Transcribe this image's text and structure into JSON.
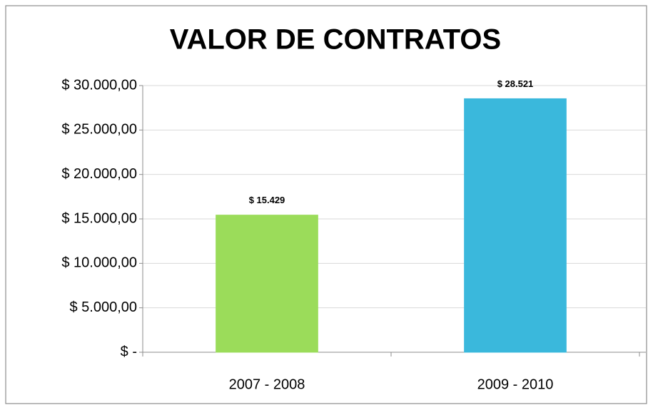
{
  "chart_data": {
    "type": "bar",
    "title": "VALOR DE CONTRATOS",
    "categories": [
      "2007 - 2008",
      "2009 - 2010"
    ],
    "values": [
      15429,
      28521
    ],
    "value_labels": [
      "$ 15.429",
      "$ 28.521"
    ],
    "colors": [
      "#9bdc5a",
      "#3ab8dc"
    ],
    "ylim": [
      0,
      30000
    ],
    "yticks": [
      {
        "value": 0,
        "label": "$ -"
      },
      {
        "value": 5000,
        "label": "$ 5.000,00"
      },
      {
        "value": 10000,
        "label": "$ 10.000,00"
      },
      {
        "value": 15000,
        "label": "$ 15.000,00"
      },
      {
        "value": 20000,
        "label": "$ 20.000,00"
      },
      {
        "value": 25000,
        "label": "$ 25.000,00"
      },
      {
        "value": 30000,
        "label": "$ 30.000,00"
      }
    ],
    "grid": true
  }
}
